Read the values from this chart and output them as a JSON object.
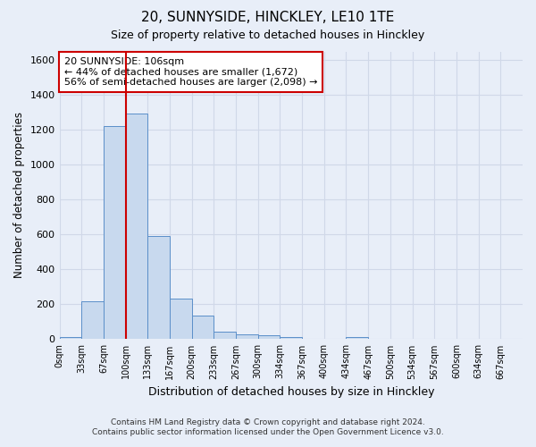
{
  "title": "20, SUNNYSIDE, HINCKLEY, LE10 1TE",
  "subtitle": "Size of property relative to detached houses in Hinckley",
  "xlabel": "Distribution of detached houses by size in Hinckley",
  "ylabel": "Number of detached properties",
  "bar_color": "#c8d9ee",
  "bar_edge_color": "#5b8fc9",
  "bin_labels": [
    "0sqm",
    "33sqm",
    "67sqm",
    "100sqm",
    "133sqm",
    "167sqm",
    "200sqm",
    "233sqm",
    "267sqm",
    "300sqm",
    "334sqm",
    "367sqm",
    "400sqm",
    "434sqm",
    "467sqm",
    "500sqm",
    "534sqm",
    "567sqm",
    "600sqm",
    "634sqm",
    "667sqm"
  ],
  "bar_values": [
    10,
    218,
    1220,
    1295,
    593,
    235,
    135,
    45,
    30,
    25,
    15,
    0,
    0,
    12,
    0,
    0,
    0,
    0,
    0,
    0,
    0
  ],
  "vline_x_index": 3,
  "annotation_line1": "20 SUNNYSIDE: 106sqm",
  "annotation_line2": "← 44% of detached houses are smaller (1,672)",
  "annotation_line3": "56% of semi-detached houses are larger (2,098) →",
  "annotation_box_color": "#ffffff",
  "annotation_box_edge_color": "#cc0000",
  "vline_color": "#cc0000",
  "ylim": [
    0,
    1650
  ],
  "yticks": [
    0,
    200,
    400,
    600,
    800,
    1000,
    1200,
    1400,
    1600
  ],
  "footnote_line1": "Contains HM Land Registry data © Crown copyright and database right 2024.",
  "footnote_line2": "Contains public sector information licensed under the Open Government Licence v3.0.",
  "bg_color": "#e8eef8",
  "plot_bg_color": "#e8eef8",
  "grid_color": "#d0d8e8"
}
